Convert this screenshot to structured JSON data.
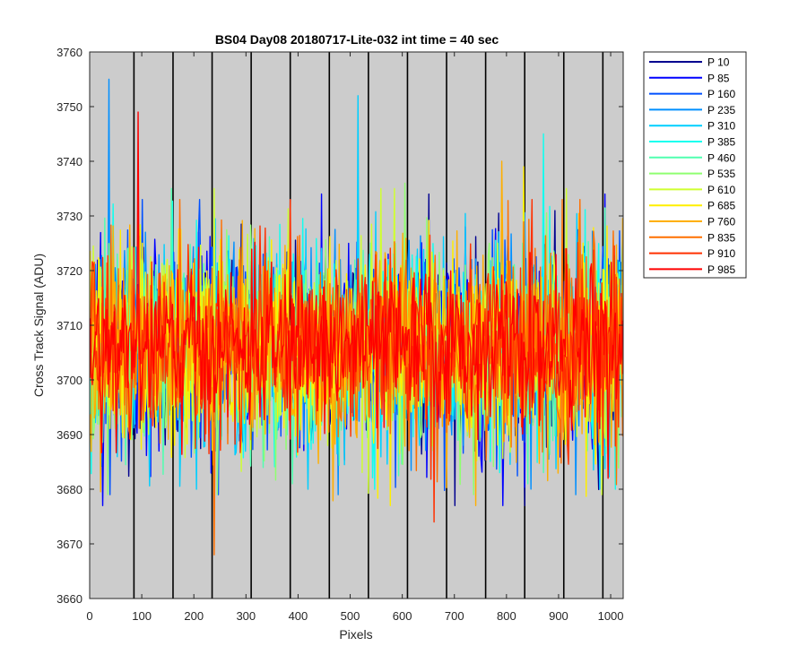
{
  "chart_data": {
    "type": "line",
    "title": "BS04 Day08 20180717-Lite-032 int time = 40 sec",
    "xlabel": "Pixels",
    "ylabel": "Cross Track Signal (ADU)",
    "xlim": [
      0,
      1024
    ],
    "ylim": [
      3660,
      3760
    ],
    "xticks": [
      0,
      100,
      200,
      300,
      400,
      500,
      600,
      700,
      800,
      900,
      1000
    ],
    "yticks": [
      3660,
      3670,
      3680,
      3690,
      3700,
      3710,
      3720,
      3730,
      3740,
      3750,
      3760
    ],
    "x_range": [
      1,
      1024
    ],
    "grid": false,
    "background_color": "#cccccc",
    "legend_position": "outside-top-right",
    "vertical_lines_x": [
      85,
      160,
      235,
      310,
      385,
      460,
      535,
      610,
      685,
      760,
      835,
      910,
      985
    ],
    "vertical_line_color": "#000000",
    "series_mean": 3706,
    "series": [
      {
        "name": "P 10",
        "color": "#00008f",
        "mean": 3706,
        "spread_std": 9,
        "min": 3677,
        "max": 3734
      },
      {
        "name": "P 85",
        "color": "#0000ff",
        "mean": 3706,
        "spread_std": 9,
        "min": 3677,
        "max": 3734
      },
      {
        "name": "P 160",
        "color": "#0050ff",
        "mean": 3706,
        "spread_std": 9,
        "min": 3679,
        "max": 3733
      },
      {
        "name": "P 235",
        "color": "#008fff",
        "mean": 3707,
        "spread_std": 9,
        "min": 3679,
        "max": 3755
      },
      {
        "name": "P 310",
        "color": "#00cfff",
        "mean": 3706,
        "spread_std": 9,
        "min": 3680,
        "max": 3752
      },
      {
        "name": "P 385",
        "color": "#10ffef",
        "mean": 3706,
        "spread_std": 9,
        "min": 3680,
        "max": 3745
      },
      {
        "name": "P 460",
        "color": "#50ffaf",
        "mean": 3706,
        "spread_std": 9,
        "min": 3681,
        "max": 3735
      },
      {
        "name": "P 535",
        "color": "#8fff70",
        "mean": 3706,
        "spread_std": 9,
        "min": 3679,
        "max": 3736
      },
      {
        "name": "P 610",
        "color": "#cfff30",
        "mean": 3706,
        "spread_std": 9,
        "min": 3679,
        "max": 3735
      },
      {
        "name": "P 685",
        "color": "#ffef00",
        "mean": 3706,
        "spread_std": 9,
        "min": 3677,
        "max": 3739
      },
      {
        "name": "P 760",
        "color": "#ffaf00",
        "mean": 3706,
        "spread_std": 9,
        "min": 3677,
        "max": 3740
      },
      {
        "name": "P 835",
        "color": "#ff7000",
        "mean": 3706,
        "spread_std": 9,
        "min": 3668,
        "max": 3733
      },
      {
        "name": "P 910",
        "color": "#ff3000",
        "mean": 3706,
        "spread_std": 8,
        "min": 3674,
        "max": 3733
      },
      {
        "name": "P 985",
        "color": "#ff0000",
        "mean": 3706,
        "spread_std": 7,
        "min": 3682,
        "max": 3749
      }
    ]
  }
}
